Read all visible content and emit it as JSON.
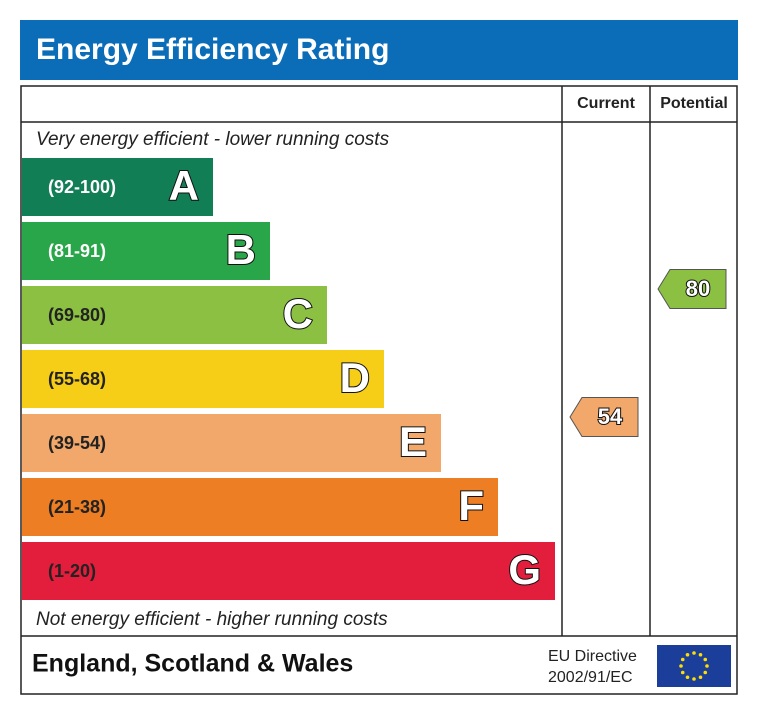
{
  "title": "Energy Efficiency Rating",
  "columns": {
    "current": "Current",
    "potential": "Potential"
  },
  "top_note": "Very energy efficient - lower running costs",
  "bottom_note": "Not energy efficient - higher running costs",
  "bands": [
    {
      "range": "(92-100)",
      "letter": "A",
      "color": "#117e56",
      "text_color": "#ffffff"
    },
    {
      "range": "(81-91)",
      "letter": "B",
      "color": "#2aa64a",
      "text_color": "#ffffff"
    },
    {
      "range": "(69-80)",
      "letter": "C",
      "color": "#8cc043",
      "text_color": "#222222"
    },
    {
      "range": "(55-68)",
      "letter": "D",
      "color": "#f6cd17",
      "text_color": "#222222"
    },
    {
      "range": "(39-54)",
      "letter": "E",
      "color": "#f2a86a",
      "text_color": "#222222"
    },
    {
      "range": "(21-38)",
      "letter": "F",
      "color": "#ed7e23",
      "text_color": "#222222"
    },
    {
      "range": "(1-20)",
      "letter": "G",
      "color": "#e31d3c",
      "text_color": "#222222"
    }
  ],
  "current": 54,
  "potential": 80,
  "footer": {
    "region": "England, Scotland & Wales",
    "directive_line1": "EU Directive",
    "directive_line2": "2002/91/EC"
  }
}
